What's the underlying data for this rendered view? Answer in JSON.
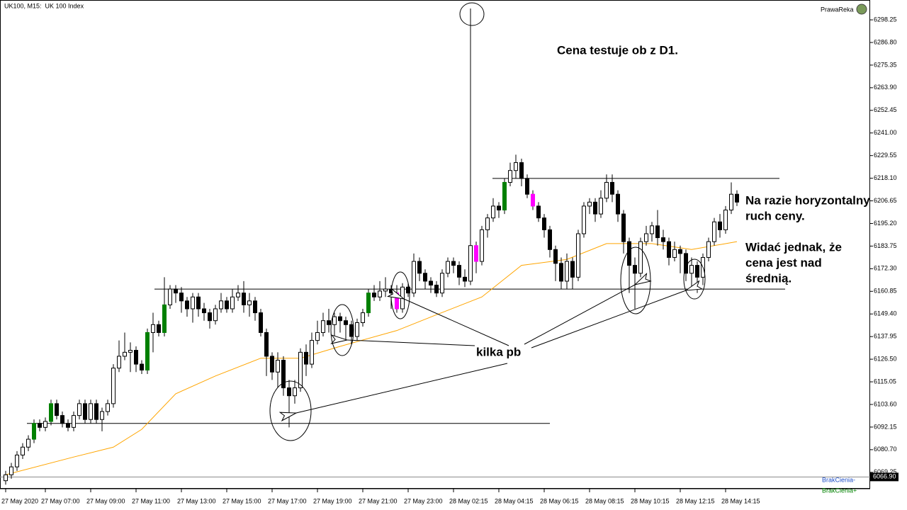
{
  "chart_data": {
    "type": "candlestick",
    "title": "UK100, M15:  UK 100 Index",
    "brand": "PrawaReka",
    "categories": [
      "27 May 2020",
      null,
      null,
      null,
      null,
      null,
      null,
      "27 May 07:00",
      null,
      null,
      null,
      null,
      null,
      null,
      null,
      "27 May 09:00",
      null,
      null,
      null,
      null,
      null,
      null,
      null,
      "27 May 11:00",
      null,
      null,
      null,
      null,
      null,
      null,
      null,
      "27 May 13:00",
      null,
      null,
      null,
      null,
      null,
      null,
      null,
      "27 May 15:00",
      null,
      null,
      null,
      null,
      null,
      null,
      null,
      "27 May 17:00",
      null,
      null,
      null,
      null,
      null,
      null,
      null,
      "27 May 19:00",
      null,
      null,
      null,
      null,
      null,
      null,
      null,
      "27 May 21:00",
      null,
      null,
      null,
      null,
      null,
      null,
      null,
      "27 May 23:00",
      null,
      null,
      null,
      null,
      null,
      null,
      null,
      "28 May 02:15",
      null,
      null,
      null,
      null,
      null,
      null,
      null,
      "28 May 04:15",
      null,
      null,
      null,
      null,
      null,
      null,
      null,
      "28 May 06:15",
      null,
      null,
      null,
      null,
      null,
      null,
      null,
      "28 May 08:15",
      null,
      null,
      null,
      null,
      null,
      null,
      null,
      "28 May 10:15",
      null,
      null,
      null,
      null,
      null,
      null,
      null,
      "28 May 12:15",
      null,
      null,
      null,
      null,
      null,
      null,
      null,
      "28 May 14:15",
      null,
      null
    ],
    "open": [
      6065,
      6068,
      6072,
      6078,
      6082,
      6086,
      6094,
      6092,
      6095,
      6104,
      6098,
      6094,
      6092,
      6098,
      6104,
      6096,
      6104,
      6096,
      6100,
      6104,
      6122,
      6128,
      6130,
      6131,
      6124,
      6121,
      6140,
      6144,
      6140,
      6154,
      6162,
      6160,
      6156,
      6152,
      6158,
      6152,
      6150,
      6146,
      6152,
      6156,
      6152,
      6158,
      6160,
      6154,
      6156,
      6150,
      6140,
      6128,
      6120,
      6126,
      6112,
      6108,
      6112,
      6130,
      6124,
      6136,
      6140,
      6146,
      6144,
      6148,
      6146,
      6144,
      6138,
      6145,
      6150,
      6160,
      6158,
      6161,
      6162,
      6160,
      6152,
      6163,
      6160,
      6176,
      6170,
      6166,
      6164,
      6160,
      6170,
      6176,
      6174,
      6168,
      6166,
      6184,
      6176,
      6192,
      6198,
      6204,
      6202,
      6216,
      6222,
      6226,
      6218,
      6210,
      6204,
      6198,
      6192,
      6182,
      6175,
      6166,
      6176,
      6168,
      6190,
      6204,
      6206,
      6200,
      6208,
      6216,
      6210,
      6200,
      6186,
      6174,
      6170,
      6186,
      6190,
      6194,
      6188,
      6186,
      6178,
      6182,
      6180,
      6170,
      6174,
      6168,
      6178,
      6186,
      6196,
      6192,
      6202,
      6210
    ],
    "high": [
      6070,
      6074,
      6080,
      6084,
      6088,
      6096,
      6096,
      6097,
      6106,
      6106,
      6100,
      6096,
      6100,
      6106,
      6106,
      6106,
      6106,
      6102,
      6106,
      6124,
      6136,
      6140,
      6135,
      6133,
      6126,
      6142,
      6150,
      6146,
      6168,
      6164,
      6164,
      6163,
      6158,
      6160,
      6160,
      6155,
      6152,
      6154,
      6160,
      6158,
      6162,
      6164,
      6166,
      6160,
      6158,
      6152,
      6142,
      6130,
      6130,
      6128,
      6116,
      6116,
      6132,
      6134,
      6140,
      6146,
      6150,
      6152,
      6150,
      6150,
      6148,
      6146,
      6147,
      6152,
      6162,
      6164,
      6166,
      6168,
      6164,
      6164,
      6165,
      6165,
      6180,
      6178,
      6172,
      6168,
      6166,
      6172,
      6178,
      6178,
      6176,
      6172,
      6304,
      6186,
      6194,
      6200,
      6208,
      6206,
      6218,
      6226,
      6230,
      6228,
      6220,
      6212,
      6206,
      6200,
      6194,
      6184,
      6178,
      6180,
      6178,
      6192,
      6206,
      6208,
      6208,
      6212,
      6220,
      6220,
      6212,
      6202,
      6188,
      6178,
      6188,
      6194,
      6196,
      6202,
      6192,
      6188,
      6186,
      6184,
      6182,
      6178,
      6176,
      6180,
      6188,
      6198,
      6200,
      6204,
      6216,
      6212
    ],
    "low": [
      6063,
      6066,
      6070,
      6076,
      6080,
      6084,
      6090,
      6090,
      6093,
      6096,
      6092,
      6090,
      6090,
      6096,
      6094,
      6094,
      6094,
      6090,
      6098,
      6102,
      6120,
      6126,
      6120,
      6120,
      6119,
      6119,
      6130,
      6138,
      6138,
      6152,
      6155,
      6150,
      6148,
      6145,
      6148,
      6146,
      6142,
      6144,
      6150,
      6150,
      6150,
      6156,
      6150,
      6148,
      6146,
      6138,
      6118,
      6116,
      6112,
      6108,
      6092,
      6104,
      6110,
      6118,
      6122,
      6134,
      6138,
      6140,
      6138,
      6140,
      6136,
      6134,
      6136,
      6143,
      6148,
      6156,
      6156,
      6158,
      6152,
      6150,
      6150,
      6158,
      6158,
      6166,
      6162,
      6160,
      6158,
      6158,
      6168,
      6170,
      6164,
      6163,
      6164,
      6170,
      6174,
      6188,
      6196,
      6198,
      6200,
      6214,
      6218,
      6214,
      6208,
      6202,
      6196,
      6188,
      6178,
      6166,
      6162,
      6162,
      6162,
      6166,
      6188,
      6200,
      6196,
      6198,
      6206,
      6206,
      6196,
      6180,
      6160,
      6152,
      6168,
      6184,
      6186,
      6184,
      6182,
      6174,
      6176,
      6170,
      6166,
      6162,
      6160,
      6164,
      6176,
      6184,
      6188,
      6190,
      6200,
      6204
    ],
    "close": [
      6068,
      6072,
      6078,
      6082,
      6086,
      6094,
      6092,
      6095,
      6104,
      6098,
      6094,
      6092,
      6098,
      6104,
      6096,
      6104,
      6096,
      6100,
      6104,
      6122,
      6128,
      6130,
      6131,
      6124,
      6121,
      6140,
      6144,
      6140,
      6154,
      6162,
      6160,
      6156,
      6152,
      6158,
      6152,
      6150,
      6146,
      6152,
      6156,
      6152,
      6158,
      6160,
      6154,
      6156,
      6150,
      6140,
      6128,
      6120,
      6126,
      6112,
      6108,
      6112,
      6130,
      6124,
      6136,
      6140,
      6146,
      6144,
      6148,
      6146,
      6144,
      6138,
      6145,
      6150,
      6160,
      6158,
      6161,
      6162,
      6160,
      6152,
      6163,
      6160,
      6176,
      6170,
      6166,
      6164,
      6160,
      6170,
      6176,
      6174,
      6168,
      6166,
      6184,
      6176,
      6192,
      6198,
      6204,
      6202,
      6216,
      6222,
      6226,
      6218,
      6210,
      6204,
      6198,
      6192,
      6182,
      6175,
      6166,
      6176,
      6168,
      6190,
      6204,
      6206,
      6200,
      6208,
      6216,
      6210,
      6200,
      6186,
      6174,
      6170,
      6186,
      6190,
      6194,
      6188,
      6186,
      6178,
      6182,
      6180,
      6170,
      6174,
      6168,
      6178,
      6186,
      6196,
      6192,
      6202,
      6210,
      6206
    ],
    "up_color": "#ffffff",
    "down_color": "#000000",
    "highlights": [
      {
        "name": "BrakCienia-",
        "color": "#ff00ff",
        "legend_color": "#1f4fc8",
        "indices": [
          69,
          83,
          93
        ]
      },
      {
        "name": "BrakCienia+",
        "color": "#008000",
        "legend_color": "#008000",
        "indices": [
          5,
          8,
          25,
          28,
          64,
          88
        ]
      }
    ],
    "ma": {
      "color": "#ffa500",
      "x": [
        0,
        12,
        19,
        24,
        30,
        37,
        45,
        52,
        59,
        69,
        76,
        84,
        91,
        99,
        106,
        114,
        121,
        129
      ],
      "values": [
        6068,
        6077,
        6082,
        6091,
        6109,
        6118,
        6127,
        6127,
        6133,
        6141,
        6149,
        6158,
        6174,
        6177,
        6185,
        6185,
        6182,
        6186
      ]
    },
    "levels": [
      6218,
      6162,
      6094
    ],
    "current_price": {
      "value": 6066.9,
      "label": "6066.90"
    },
    "ylim": [
      6061.65,
      6308.3
    ],
    "yticks": [
      {
        "value": 6298.25,
        "label": "6298.25"
      },
      {
        "value": 6286.8,
        "label": "6286.80"
      },
      {
        "value": 6275.35,
        "label": "6275.35"
      },
      {
        "value": 6263.9,
        "label": "6263.90"
      },
      {
        "value": 6252.45,
        "label": "6252.45"
      },
      {
        "value": 6241,
        "label": "6241.00"
      },
      {
        "value": 6229.55,
        "label": "6229.55"
      },
      {
        "value": 6218.1,
        "label": "6218.10"
      },
      {
        "value": 6206.65,
        "label": "6206.65"
      },
      {
        "value": 6195.2,
        "label": "6195.20"
      },
      {
        "value": 6183.75,
        "label": "6183.75"
      },
      {
        "value": 6172.3,
        "label": "6172.30"
      },
      {
        "value": 6160.85,
        "label": "6160.85"
      },
      {
        "value": 6149.4,
        "label": "6149.40"
      },
      {
        "value": 6137.95,
        "label": "6137.95"
      },
      {
        "value": 6126.5,
        "label": "6126.50"
      },
      {
        "value": 6115.05,
        "label": "6115.05"
      },
      {
        "value": 6103.6,
        "label": "6103.60"
      },
      {
        "value": 6092.15,
        "label": "6092.15"
      },
      {
        "value": 6080.7,
        "label": "6080.70"
      },
      {
        "value": 6069.25,
        "label": "6069.25"
      }
    ],
    "annotations": {
      "d1": [
        "Cena testuje ob z D1."
      ],
      "horizontal": [
        "Na razie horyzontalny",
        "ruch ceny."
      ],
      "above_ma": [
        "Widać jednak, że",
        "cena jest nad",
        "średnią."
      ],
      "pb": [
        "kilka pb"
      ]
    }
  }
}
